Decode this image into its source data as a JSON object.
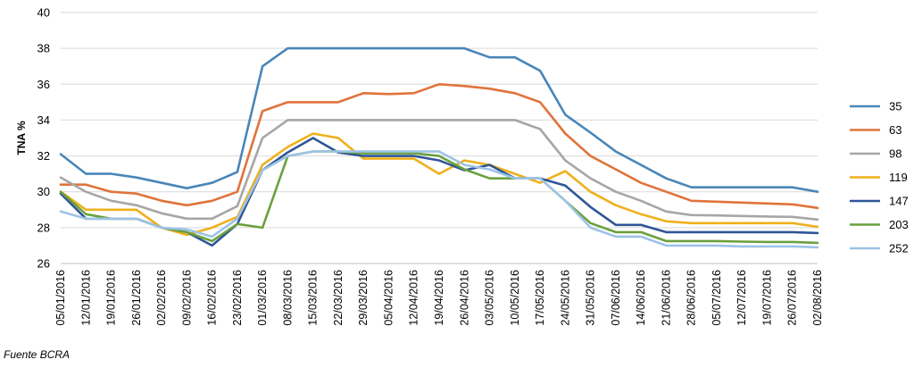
{
  "chart_data": {
    "type": "line",
    "title": "",
    "xlabel": "",
    "ylabel": "TNA %",
    "ylim": [
      26,
      40
    ],
    "yticks": [
      26,
      28,
      30,
      32,
      34,
      36,
      38,
      40
    ],
    "grid": true,
    "legend_position": "right",
    "x": [
      "05/01/2016",
      "12/01/2016",
      "19/01/2016",
      "26/01/2016",
      "02/02/2016",
      "09/02/2016",
      "16/02/2016",
      "23/02/2016",
      "01/03/2016",
      "08/03/2016",
      "15/03/2016",
      "22/03/2016",
      "29/03/2016",
      "05/04/2016",
      "12/04/2016",
      "19/04/2016",
      "26/04/2016",
      "03/05/2016",
      "10/05/2016",
      "17/05/2016",
      "24/05/2016",
      "31/05/2016",
      "07/06/2016",
      "14/06/2016",
      "21/06/2016",
      "28/06/2016",
      "05/07/2016",
      "12/07/2016",
      "19/07/2016",
      "26/07/2016",
      "02/08/2016"
    ],
    "x_tick_labels": [
      "05/01/2016",
      "12/01/2016",
      "19/01/2016",
      "26/01/2016",
      "02/02/2016",
      "09/02/2016",
      "16/02/2016",
      "23/02/2016",
      "01/03/2016",
      "08/03/2016",
      "15/03/2016",
      "22/03/2016",
      "29/03/2016",
      "05/04/2016",
      "12/04/2016",
      "19/04/2016",
      "26/04/2016",
      "03/05/2016",
      "10/05/2016",
      "17/05/2016",
      "24/05/2016",
      "31/05/2016",
      "07/06/2016",
      "14/06/2016",
      "21/06/2016",
      "28/06/2016",
      "05/07/2016",
      "12/07/2016",
      "19/07/2016",
      "26/07/2016",
      "02/08/2016"
    ],
    "series": [
      {
        "name": "35",
        "color": "#4a86b8",
        "values": [
          32.1,
          31.0,
          31.0,
          30.8,
          30.5,
          30.2,
          30.5,
          31.1,
          37.0,
          38.0,
          38.0,
          38.0,
          38.0,
          38.0,
          38.0,
          38.0,
          38.0,
          37.5,
          37.5,
          36.75,
          34.3,
          33.3,
          32.25,
          31.5,
          30.75,
          30.25,
          30.25,
          30.25,
          30.25,
          30.25,
          30.0
        ]
      },
      {
        "name": "63",
        "color": "#e0733a",
        "values": [
          30.4,
          30.4,
          30.0,
          29.9,
          29.5,
          29.25,
          29.5,
          30.0,
          34.5,
          35.0,
          35.0,
          35.0,
          35.5,
          35.45,
          35.5,
          36.0,
          35.9,
          35.75,
          35.5,
          35.0,
          33.25,
          32.0,
          31.25,
          30.5,
          30.0,
          29.5,
          29.45,
          29.4,
          29.35,
          29.3,
          29.1
        ]
      },
      {
        "name": "98",
        "color": "#a6a6a6",
        "values": [
          30.8,
          30.0,
          29.5,
          29.25,
          28.8,
          28.5,
          28.5,
          29.2,
          33.0,
          34.0,
          34.0,
          34.0,
          34.0,
          34.0,
          34.0,
          34.0,
          34.0,
          34.0,
          34.0,
          33.5,
          31.75,
          30.75,
          30.0,
          29.5,
          28.9,
          28.7,
          28.68,
          28.65,
          28.62,
          28.6,
          28.45
        ]
      },
      {
        "name": "119",
        "color": "#efb01b",
        "values": [
          30.0,
          29.0,
          29.0,
          29.0,
          28.0,
          27.6,
          28.0,
          28.6,
          31.5,
          32.5,
          33.25,
          33.0,
          31.85,
          31.85,
          31.85,
          31.0,
          31.75,
          31.5,
          31.0,
          30.5,
          31.15,
          30.0,
          29.25,
          28.75,
          28.35,
          28.25,
          28.25,
          28.25,
          28.25,
          28.25,
          28.05
        ]
      },
      {
        "name": "147",
        "color": "#2f5597",
        "values": [
          29.9,
          28.5,
          28.5,
          28.5,
          28.0,
          27.75,
          27.0,
          28.2,
          31.2,
          32.2,
          33.0,
          32.2,
          32.0,
          32.0,
          32.0,
          31.75,
          31.2,
          31.5,
          30.75,
          30.75,
          30.35,
          29.15,
          28.15,
          28.15,
          27.75,
          27.75,
          27.75,
          27.75,
          27.75,
          27.75,
          27.7
        ]
      },
      {
        "name": "203",
        "color": "#6aa13e",
        "values": [
          30.0,
          28.75,
          28.5,
          28.5,
          28.0,
          27.75,
          27.25,
          28.2,
          28.0,
          32.0,
          32.25,
          32.25,
          32.15,
          32.15,
          32.15,
          32.0,
          31.25,
          30.75,
          30.75,
          30.75,
          29.5,
          28.25,
          27.75,
          27.75,
          27.25,
          27.25,
          27.25,
          27.22,
          27.2,
          27.2,
          27.15
        ]
      },
      {
        "name": "252",
        "color": "#9dc3e6",
        "values": [
          28.9,
          28.5,
          28.5,
          28.5,
          28.0,
          27.9,
          27.5,
          28.5,
          31.2,
          32.0,
          32.25,
          32.25,
          32.25,
          32.25,
          32.25,
          32.25,
          31.5,
          31.25,
          30.75,
          30.75,
          29.5,
          28.0,
          27.5,
          27.5,
          27.0,
          27.0,
          27.0,
          26.95,
          26.95,
          26.95,
          26.9
        ]
      }
    ]
  },
  "footer": {
    "source": "Fuente BCRA"
  }
}
